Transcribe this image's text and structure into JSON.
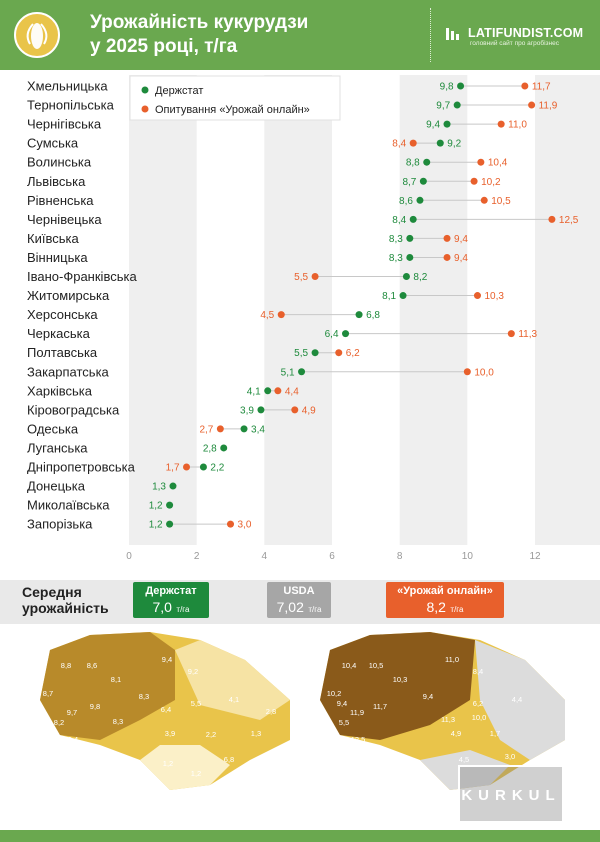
{
  "header": {
    "title_line1": "Урожайність кукурудзи",
    "title_line2": "у 2025 році, т/га",
    "brand": "LATIFUNDIST.COM",
    "brand_sub": "головний сайт про агробізнес"
  },
  "colors": {
    "derzhstat": "#1e8a3c",
    "survey": "#e8602c",
    "header": "#6aa84f",
    "usda": "#a6a6a6"
  },
  "chart_data": {
    "type": "dot-plot",
    "x_ticks": [
      0,
      2,
      4,
      6,
      8,
      10,
      12
    ],
    "xlim": [
      0,
      13
    ],
    "legend": [
      "Держстат",
      "Опитування «Урожай онлайн»"
    ],
    "legend_placement": "top-left",
    "categories": [
      "Хмельницька",
      "Тернопільська",
      "Чернігівська",
      "Сумська",
      "Волинська",
      "Львівська",
      "Рівненська",
      "Чернівецька",
      "Київська",
      "Вінницька",
      "Івано-Франківська",
      "Житомирська",
      "Херсонська",
      "Черкаська",
      "Полтавська",
      "Закарпатська",
      "Харківська",
      "Кіровоградська",
      "Одеська",
      "Луганська",
      "Дніпропетровська",
      "Донецька",
      "Миколаївська",
      "Запорізька"
    ],
    "series": [
      {
        "name": "Держстат",
        "values": [
          9.8,
          9.7,
          9.4,
          9.2,
          8.8,
          8.7,
          8.6,
          8.4,
          8.3,
          8.3,
          8.2,
          8.1,
          6.8,
          6.4,
          5.5,
          5.1,
          4.1,
          3.9,
          3.4,
          2.8,
          2.2,
          1.3,
          1.2,
          1.2
        ]
      },
      {
        "name": "Опитування «Урожай онлайн»",
        "values": [
          11.7,
          11.9,
          11.0,
          8.4,
          10.4,
          10.2,
          10.5,
          12.5,
          9.4,
          9.4,
          5.5,
          10.3,
          4.5,
          11.3,
          6.2,
          10.0,
          4.4,
          4.9,
          2.7,
          null,
          1.7,
          null,
          null,
          3.0
        ]
      }
    ],
    "labels_derzhstat": [
      "9,8",
      "9,7",
      "9,4",
      "9,2",
      "8,8",
      "8,7",
      "8,6",
      "8,4",
      "8,3",
      "8,3",
      "8,2",
      "8,1",
      "6,8",
      "6,4",
      "5,5",
      "5,1",
      "4,1",
      "3,9",
      "3,4",
      "2,8",
      "2,2",
      "1,3",
      "1,2",
      "1,2"
    ],
    "labels_survey": [
      "11,7",
      "11,9",
      "11,0",
      "8,4",
      "10,4",
      "10,2",
      "10,5",
      "12,5",
      "9,4",
      "9,4",
      "5,5",
      "10,3",
      "4,5",
      "11,3",
      "6,2",
      "10,0",
      "4,4",
      "4,9",
      "2,7",
      "",
      "1,7",
      "",
      "",
      "3,0"
    ]
  },
  "averages": {
    "label": "Середня\nурожайність",
    "cards": [
      {
        "name": "Держстат",
        "value": "7,0",
        "unit": "т/га"
      },
      {
        "name": "USDA",
        "value": "7,02",
        "unit": "т/га"
      },
      {
        "name": "«Урожай онлайн»",
        "value": "8,2",
        "unit": "т/га"
      }
    ]
  },
  "maps": {
    "left": [
      "8,8",
      "8,6",
      "9,4",
      "9,2",
      "8,7",
      "8,1",
      "8,3",
      "9,7",
      "9,8",
      "6,4",
      "5,5",
      "4,1",
      "2,8",
      "5,1",
      "8,2",
      "8,3",
      "8,4",
      "3,9",
      "2,2",
      "1,3",
      "3,4",
      "1,2",
      "6,8",
      "1,2"
    ],
    "right": [
      "10,4",
      "10,5",
      "11,0",
      "8,4",
      "10,2",
      "10,3",
      "9,4",
      "11,9",
      "11,7",
      "11,3",
      "6,2",
      "4,4",
      "10,0",
      "5,5",
      "9,4",
      "12,5",
      "4,9",
      "1,7",
      "2,7",
      "3,0",
      "4,5"
    ]
  },
  "watermark": "KURKUL"
}
